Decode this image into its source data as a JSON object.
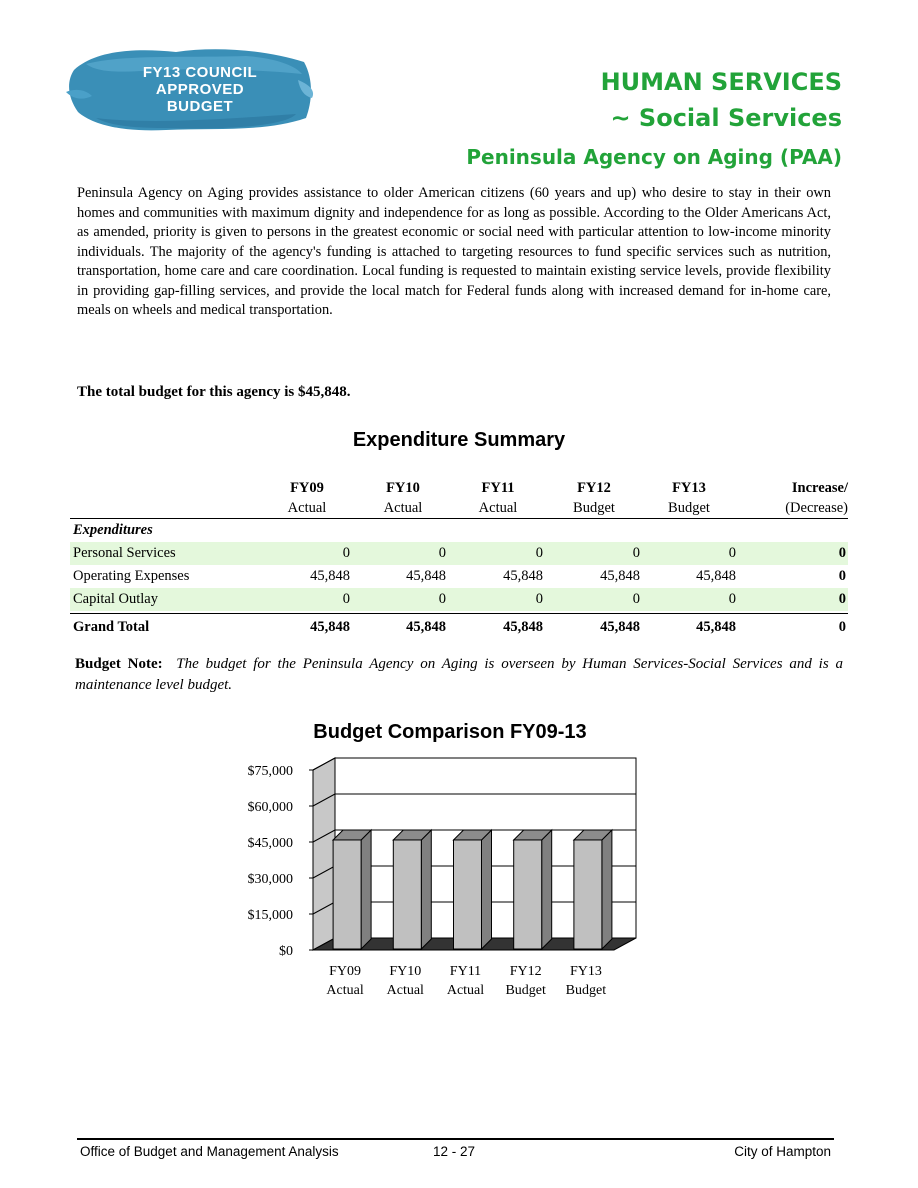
{
  "badge": {
    "lines": [
      "FY13 COUNCIL",
      "APPROVED",
      "BUDGET"
    ]
  },
  "header": {
    "line1": "HUMAN SERVICES",
    "line2": "~ Social Services",
    "line3": "Peninsula Agency on Aging (PAA)"
  },
  "intro": "Peninsula Agency on Aging provides assistance to older American citizens (60 years and up) who desire to stay in their own homes and communities with maximum dignity and independence for as long as possible.  According to the Older Americans Act, as amended, priority is given to persons in the greatest economic or social need with particular attention to low-income minority individuals.  The majority of the agency's funding is attached to targeting resources to fund specific services such as nutrition, transportation, home care and care coordination.  Local funding is requested to maintain existing service levels, provide flexibility in providing gap-filling services, and provide the local match for Federal funds along with increased demand for in-home care, meals on wheels and medical transportation.",
  "total_budget": "The total budget for this agency is $45,848.",
  "expenditure_summary": {
    "title": "Expenditure Summary",
    "columns": [
      {
        "line1": "FY09",
        "line2": "Actual"
      },
      {
        "line1": "FY10",
        "line2": "Actual"
      },
      {
        "line1": "FY11",
        "line2": "Actual"
      },
      {
        "line1": "FY12",
        "line2": "Budget"
      },
      {
        "line1": "FY13",
        "line2": "Budget"
      },
      {
        "line1": "Increase/",
        "line2": "(Decrease)"
      }
    ],
    "section": "Expenditures",
    "rows": [
      {
        "label": "Personal Services",
        "values": [
          "0",
          "0",
          "0",
          "0",
          "0",
          "0"
        ]
      },
      {
        "label": "Operating Expenses",
        "values": [
          "45,848",
          "45,848",
          "45,848",
          "45,848",
          "45,848",
          "0"
        ]
      },
      {
        "label": "Capital Outlay",
        "values": [
          "0",
          "0",
          "0",
          "0",
          "0",
          "0"
        ]
      }
    ],
    "grand_total": {
      "label": "Grand Total",
      "values": [
        "45,848",
        "45,848",
        "45,848",
        "45,848",
        "45,848",
        "0"
      ]
    }
  },
  "budget_note": {
    "label": "Budget Note:",
    "text": "The budget for the Peninsula Agency on Aging is overseen by Human Services-Social Services and is a maintenance level budget."
  },
  "chart_data": {
    "type": "bar",
    "title": "Budget Comparison FY09-13",
    "categories": [
      [
        "FY09",
        "Actual"
      ],
      [
        "FY10",
        "Actual"
      ],
      [
        "FY11",
        "Actual"
      ],
      [
        "FY12",
        "Budget"
      ],
      [
        "FY13",
        "Budget"
      ]
    ],
    "values": [
      45848,
      45848,
      45848,
      45848,
      45848
    ],
    "ylim": [
      0,
      75000
    ],
    "yticks": [
      "$0",
      "$15,000",
      "$30,000",
      "$45,000",
      "$60,000",
      "$75,000"
    ],
    "xlabel": "",
    "ylabel": "",
    "grid": true,
    "bar_color": "#c0c0c0"
  },
  "footer": {
    "left": "Office of Budget and Management Analysis",
    "center": "12 - 27",
    "right": "City of Hampton"
  }
}
